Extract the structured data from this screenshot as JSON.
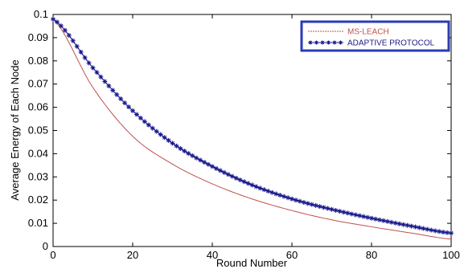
{
  "chart_data": {
    "type": "line",
    "title": "",
    "xlabel": "Round Number",
    "ylabel": "Average Energy of Each Node",
    "xlim": [
      0,
      100
    ],
    "ylim": [
      0,
      0.1
    ],
    "xticks": [
      0,
      20,
      40,
      60,
      80,
      100
    ],
    "yticks": [
      0,
      0.01,
      0.02,
      0.03,
      0.04,
      0.05,
      0.06,
      0.07,
      0.08,
      0.09,
      0.1
    ],
    "x_tick_labels": [
      "0",
      "20",
      "40",
      "60",
      "80",
      "100"
    ],
    "y_tick_labels": [
      "0",
      "0.01",
      "0.02",
      "0.03",
      "0.04",
      "0.05",
      "0.06",
      "0.07",
      "0.08",
      "0.09",
      "0.1"
    ],
    "grid": false,
    "legend_position": "top-right",
    "x": [
      0,
      10,
      20,
      30,
      40,
      50,
      60,
      70,
      80,
      90,
      100
    ],
    "series": [
      {
        "name": "MS-LEACH",
        "color": "#c0504d",
        "style": "line",
        "values": [
          0.098,
          0.0685,
          0.0475,
          0.0355,
          0.027,
          0.0205,
          0.0155,
          0.0115,
          0.0085,
          0.0058,
          0.0032
        ]
      },
      {
        "name": "ADAPTIVE PROTOCOL",
        "color": "#1a1a8c",
        "style": "star-line",
        "values": [
          0.098,
          0.077,
          0.0585,
          0.0445,
          0.0345,
          0.0265,
          0.0205,
          0.016,
          0.0122,
          0.0088,
          0.0058
        ]
      }
    ],
    "legend_border_color": "#2a3bb5"
  }
}
